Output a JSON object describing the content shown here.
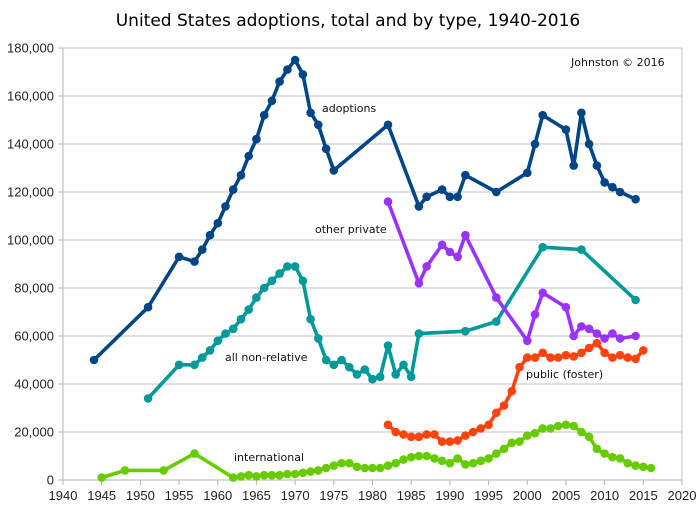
{
  "chart_data": {
    "type": "line",
    "title": "United States adoptions, total and by type, 1940-2016",
    "credit": "Johnston © 2016",
    "xlabel": "",
    "ylabel": "",
    "xlim": [
      1940,
      2020
    ],
    "ylim": [
      0,
      180000
    ],
    "grid": true,
    "x_ticks": [
      "1940",
      "1945",
      "1950",
      "1955",
      "1960",
      "1965",
      "1970",
      "1975",
      "1980",
      "1985",
      "1990",
      "1995",
      "2000",
      "2005",
      "2010",
      "2015",
      "2020"
    ],
    "y_ticks": [
      "0",
      "20,000",
      "40,000",
      "60,000",
      "80,000",
      "100,000",
      "120,000",
      "140,000",
      "160,000",
      "180,000"
    ],
    "series": [
      {
        "name": "adoptions",
        "label": "adoptions",
        "color": "#004586",
        "x": [
          1944,
          1951,
          1955,
          1957,
          1958,
          1959,
          1960,
          1961,
          1962,
          1963,
          1964,
          1965,
          1966,
          1967,
          1968,
          1969,
          1970,
          1971,
          1972,
          1973,
          1974,
          1975,
          1982,
          1986,
          1987,
          1989,
          1990,
          1991,
          1992,
          1996,
          2000,
          2001,
          2002,
          2005,
          2006,
          2007,
          2008,
          2009,
          2010,
          2011,
          2012,
          2014
        ],
        "values": [
          50000,
          72000,
          93000,
          91000,
          96000,
          102000,
          107000,
          114000,
          121000,
          127000,
          135000,
          142000,
          152000,
          158000,
          166000,
          171000,
          175000,
          169000,
          153000,
          148000,
          138000,
          129000,
          148000,
          114000,
          118000,
          121000,
          118000,
          118000,
          127000,
          120000,
          128000,
          140000,
          152000,
          146000,
          131000,
          153000,
          140000,
          131000,
          124000,
          122000,
          120000,
          117000
        ]
      },
      {
        "name": "all non-relative",
        "label": "all non-relative",
        "color": "#009999",
        "x": [
          1951,
          1955,
          1957,
          1958,
          1959,
          1960,
          1961,
          1962,
          1963,
          1964,
          1965,
          1966,
          1967,
          1968,
          1969,
          1970,
          1971,
          1972,
          1973,
          1974,
          1975,
          1976,
          1977,
          1978,
          1979,
          1980,
          1981,
          1982,
          1983,
          1984,
          1985,
          1986,
          1992,
          1996,
          2002,
          2007,
          2014
        ],
        "values": [
          34000,
          48000,
          48000,
          51000,
          54000,
          58000,
          61000,
          63000,
          67000,
          71000,
          76000,
          80000,
          83000,
          86000,
          89000,
          89000,
          83000,
          67000,
          59000,
          50000,
          48000,
          50000,
          47000,
          44000,
          46000,
          42000,
          43000,
          56000,
          44000,
          48000,
          43000,
          61000,
          62000,
          66000,
          97000,
          96000,
          75000
        ]
      },
      {
        "name": "other private",
        "label": "other private",
        "color": "#9933ff",
        "x": [
          1982,
          1986,
          1987,
          1989,
          1990,
          1991,
          1992,
          1996,
          2000,
          2001,
          2002,
          2005,
          2006,
          2007,
          2008,
          2009,
          2010,
          2011,
          2012,
          2014
        ],
        "values": [
          116000,
          82000,
          89000,
          98000,
          95000,
          93000,
          102000,
          76000,
          58000,
          69000,
          78000,
          72000,
          60000,
          64000,
          63000,
          61000,
          59000,
          61000,
          59000,
          60000
        ]
      },
      {
        "name": "public (foster)",
        "label": "public (foster)",
        "color": "#ff420e",
        "x": [
          1982,
          1983,
          1984,
          1985,
          1986,
          1987,
          1988,
          1989,
          1990,
          1991,
          1992,
          1993,
          1994,
          1995,
          1996,
          1997,
          1998,
          1999,
          2000,
          2001,
          2002,
          2003,
          2004,
          2005,
          2006,
          2007,
          2008,
          2009,
          2010,
          2011,
          2012,
          2013,
          2014,
          2015
        ],
        "values": [
          23000,
          20000,
          19000,
          18000,
          18000,
          19000,
          19000,
          16000,
          16000,
          16500,
          18500,
          20000,
          21500,
          23000,
          28000,
          31000,
          37000,
          47000,
          51000,
          51000,
          53000,
          51000,
          51000,
          52000,
          51500,
          53000,
          55000,
          57000,
          53000,
          51000,
          52000,
          51000,
          50500,
          54000
        ]
      },
      {
        "name": "international",
        "label": "international",
        "color": "#66cc00",
        "x": [
          1945,
          1948,
          1953,
          1957,
          1962,
          1963,
          1964,
          1965,
          1966,
          1967,
          1968,
          1969,
          1970,
          1971,
          1972,
          1973,
          1974,
          1975,
          1976,
          1977,
          1978,
          1979,
          1980,
          1981,
          1982,
          1983,
          1984,
          1985,
          1986,
          1987,
          1988,
          1989,
          1990,
          1991,
          1992,
          1993,
          1994,
          1995,
          1996,
          1997,
          1998,
          1999,
          2000,
          2001,
          2002,
          2003,
          2004,
          2005,
          2006,
          2007,
          2008,
          2009,
          2010,
          2011,
          2012,
          2013,
          2014,
          2015,
          2016
        ],
        "values": [
          1000,
          4000,
          4000,
          11000,
          1000,
          1500,
          2000,
          1500,
          2000,
          2000,
          2000,
          2500,
          2500,
          3000,
          3500,
          4000,
          5000,
          6000,
          7000,
          7000,
          5500,
          5000,
          5000,
          5000,
          6000,
          7000,
          8500,
          9500,
          10000,
          10000,
          9000,
          8000,
          7000,
          9000,
          6500,
          7000,
          8000,
          9000,
          11000,
          13000,
          15500,
          16000,
          18500,
          19500,
          21500,
          21500,
          22500,
          23000,
          22500,
          20000,
          18000,
          13000,
          11000,
          9500,
          9000,
          7000,
          6000,
          5500,
          5000
        ]
      }
    ],
    "annotations": [
      {
        "text": "adoptions",
        "series": "adoptions"
      },
      {
        "text": "other private",
        "series": "other private"
      },
      {
        "text": "all non-relative",
        "series": "all non-relative"
      },
      {
        "text": "public (foster)",
        "series": "public (foster)"
      },
      {
        "text": "international",
        "series": "international"
      }
    ]
  }
}
